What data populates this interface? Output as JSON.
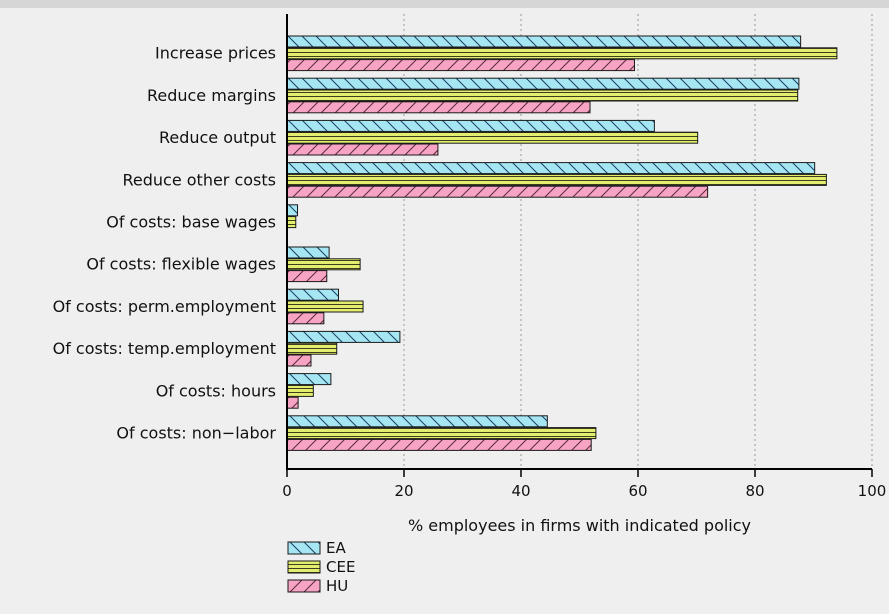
{
  "chart_data": {
    "type": "bar",
    "orientation": "horizontal",
    "title": "",
    "xlabel": "% employees in firms with indicated policy",
    "ylabel": "",
    "xlim": [
      0,
      100
    ],
    "xticks": [
      0,
      20,
      40,
      60,
      80,
      100
    ],
    "grid": "vertical dotted",
    "legend_position": "bottom-left",
    "categories": [
      "Increase prices",
      "Reduce margins",
      "Reduce output",
      "Reduce other costs",
      "Of costs: base wages",
      "Of costs: flexible wages",
      "Of costs: perm.employment",
      "Of costs: temp.employment",
      "Of costs: hours",
      "Of costs: non−labor"
    ],
    "series": [
      {
        "name": "EA",
        "color": "#a6e6f2",
        "pattern": "backslash-hatch",
        "values": [
          87.8,
          87.5,
          62.8,
          90.2,
          1.8,
          7.2,
          8.8,
          19.3,
          7.5,
          44.5
        ]
      },
      {
        "name": "CEE",
        "color": "#e4ee6e",
        "pattern": "horizontal-lines",
        "values": [
          94.0,
          87.3,
          70.2,
          92.2,
          1.5,
          12.5,
          13.0,
          8.5,
          4.5,
          52.8
        ]
      },
      {
        "name": "HU",
        "color": "#f7a3c4",
        "pattern": "slash-hatch",
        "values": [
          59.4,
          51.8,
          25.8,
          71.9,
          0,
          6.8,
          6.3,
          4.1,
          1.9,
          52.0
        ]
      }
    ]
  }
}
